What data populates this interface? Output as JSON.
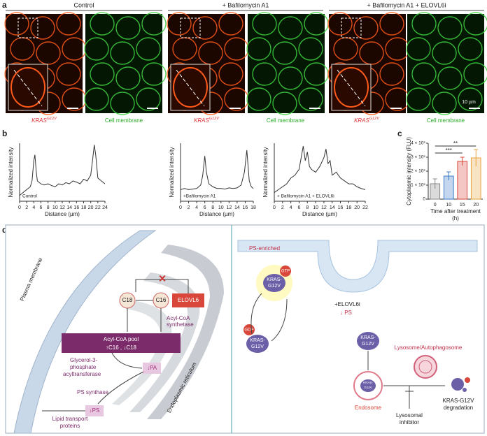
{
  "panel_labels": [
    "a",
    "b",
    "c",
    "d"
  ],
  "panel_a": {
    "groups": [
      "Control",
      "+ Bafilomycin A1",
      "+ Bafilomycin A1 + ELOVL6i"
    ],
    "channels": [
      {
        "gene": "KRAS",
        "superscript": "G12V"
      },
      "Cell membrane"
    ],
    "scale_bar": "10 µm"
  },
  "chart_data": [
    {
      "type": "line",
      "xlabel": "Distance (µm)",
      "ylabel": "Normalized intensity",
      "x": [
        0,
        1,
        2,
        3,
        3.5,
        4,
        4.3,
        4.7,
        5,
        6,
        7,
        8,
        9,
        10,
        11,
        12,
        13,
        14,
        15,
        16,
        17,
        18,
        19,
        20,
        20.5,
        21,
        21.4,
        22,
        23,
        24
      ],
      "series": [
        {
          "name": "Control",
          "color": "#333333",
          "values": [
            0.1,
            0.15,
            0.2,
            0.25,
            0.35,
            0.7,
            0.8,
            0.5,
            0.35,
            0.3,
            0.28,
            0.3,
            0.27,
            0.25,
            0.3,
            0.28,
            0.32,
            0.3,
            0.35,
            0.33,
            0.3,
            0.38,
            0.35,
            0.45,
            0.7,
            0.97,
            0.8,
            0.4,
            0.35,
            0.3
          ]
        }
      ],
      "xlim": [
        0,
        24
      ],
      "xticks": [
        0,
        2,
        4,
        6,
        8,
        10,
        12,
        14,
        16,
        18,
        20,
        22,
        24
      ],
      "ylim": [
        0,
        1
      ]
    },
    {
      "type": "line",
      "xlabel": "Distance (µm)",
      "ylabel": "Normalized intensity",
      "x": [
        0,
        1,
        2,
        3,
        4,
        5,
        5.5,
        6,
        6.4,
        7,
        8,
        9,
        10,
        11,
        12,
        13,
        14,
        15,
        15.8,
        16.4,
        17,
        17.5,
        18
      ],
      "series": [
        {
          "name": "+Bafilomycin A1",
          "color": "#333333",
          "values": [
            0.2,
            0.22,
            0.2,
            0.21,
            0.22,
            0.28,
            0.45,
            0.78,
            0.5,
            0.3,
            0.25,
            0.22,
            0.22,
            0.21,
            0.23,
            0.22,
            0.23,
            0.28,
            0.5,
            0.88,
            0.35,
            0.25,
            0.22
          ]
        }
      ],
      "xlim": [
        0,
        18
      ],
      "xticks": [
        0,
        2,
        4,
        6,
        8,
        10,
        12,
        14,
        16,
        18
      ],
      "ylim": [
        0,
        1
      ]
    },
    {
      "type": "line",
      "xlabel": "Distance (µm)",
      "ylabel": "Normalized intensity",
      "x": [
        0,
        1,
        2,
        3,
        4,
        5,
        6,
        6.5,
        7,
        7.5,
        8,
        8.5,
        9,
        10,
        11,
        12,
        12.5,
        13,
        13.5,
        14,
        15,
        16,
        17,
        18,
        19,
        20,
        21,
        22
      ],
      "series": [
        {
          "name": "+ Bafilomycin A1 + ELOVL6i",
          "color": "#333333",
          "values": [
            0.15,
            0.2,
            0.25,
            0.3,
            0.4,
            0.45,
            0.55,
            0.75,
            0.95,
            0.7,
            0.85,
            0.6,
            0.55,
            0.5,
            0.6,
            0.75,
            0.9,
            0.65,
            0.7,
            0.45,
            0.5,
            0.4,
            0.35,
            0.3,
            0.3,
            0.25,
            0.22,
            0.2
          ]
        }
      ],
      "xlim": [
        0,
        22
      ],
      "xticks": [
        0,
        2,
        4,
        6,
        8,
        10,
        12,
        14,
        16,
        18,
        20,
        22
      ],
      "ylim": [
        0,
        1
      ]
    },
    {
      "type": "bar",
      "ylabel": "Cytoplasmic intensity (FLU)",
      "xlabel": [
        "Time after treatment",
        "(h)"
      ],
      "categories": [
        "0",
        "10",
        "15",
        "20"
      ],
      "values": [
        1100000,
        1650000,
        2700000,
        2950000
      ],
      "errors": [
        350000,
        300000,
        300000,
        600000
      ],
      "colors": [
        "#888888",
        "#3a78c8",
        "#d9463a",
        "#e8a33a"
      ],
      "ylim": [
        0,
        4000000
      ],
      "yticks": [
        0,
        {
          "value": 1000000,
          "label": "1 × 10⁶"
        },
        {
          "value": 2000000,
          "label": "2 × 10⁶"
        },
        {
          "value": 3000000,
          "label": "3 × 10⁶"
        },
        {
          "value": 4000000,
          "label": "4 × 10⁶"
        }
      ],
      "significance": [
        {
          "label": "**",
          "from": "0",
          "to": "20"
        },
        {
          "label": "***",
          "from": "0",
          "to": "15"
        }
      ]
    }
  ],
  "panel_d": {
    "left": {
      "plasma_membrane": "Plasma membrane",
      "c18": "C18",
      "c16": "C16",
      "elovl6": "ELOVL6",
      "acyl_coa_synthetase": [
        "Acyl-CoA",
        "synthetase"
      ],
      "acyl_coa_pool": "Acyl-CoA pool",
      "pool_change": "↑C16 , ↓C18",
      "gpat": [
        "Glycerol-3-",
        "phosphate",
        "acyltransferase"
      ],
      "pa": "↓PA",
      "er": "Endoplasmic reticulum",
      "ps_synthase": "PS synthase",
      "ps": "↓PS",
      "lipid_transport": [
        "Lipid transport",
        "proteins"
      ]
    },
    "right": {
      "ps_enriched": "PS-enriched",
      "gtp": "GTP",
      "kras_active": [
        "KRAS-",
        "G12V"
      ],
      "gdp": "GDP",
      "kras_inactive": [
        "KRAS-",
        "G12V"
      ],
      "elovl6i": "+ELOVL6i",
      "ps_down": "↓ PS",
      "kras_released": [
        "KRAS-",
        "G12V"
      ],
      "lysosome": "Lysosome/Autophagosome",
      "kras_endosome": [
        "KRAS-",
        "G12V"
      ],
      "endosome": "Endosome",
      "degradation": [
        "KRAS-G12V",
        "degradation"
      ],
      "inhibitor": [
        "Lysosomal",
        "inhibitor"
      ]
    }
  }
}
